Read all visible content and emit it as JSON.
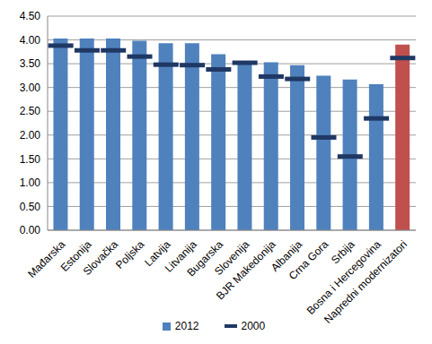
{
  "chart_data": {
    "type": "bar",
    "categories": [
      "Mađarska",
      "Estonija",
      "Slovačka",
      "Poljska",
      "Latvija",
      "Litvanija",
      "Bugarska",
      "Slovenija",
      "BJR Makedonija",
      "Albanija",
      "Crna Gora",
      "Srbija",
      "Bosna i Hercegovina",
      "Napredni modernizatori"
    ],
    "series": [
      {
        "name": "2012",
        "type": "bar",
        "colors": [
          "#4f81bd",
          "#4f81bd",
          "#4f81bd",
          "#4f81bd",
          "#4f81bd",
          "#4f81bd",
          "#4f81bd",
          "#4f81bd",
          "#4f81bd",
          "#4f81bd",
          "#4f81bd",
          "#4f81bd",
          "#4f81bd",
          "#c0504d"
        ],
        "color": "#4f81bd",
        "values": [
          4.03,
          4.03,
          4.03,
          3.98,
          3.93,
          3.93,
          3.7,
          3.52,
          3.53,
          3.47,
          3.25,
          3.17,
          3.07,
          3.9
        ]
      },
      {
        "name": "2000",
        "type": "marker",
        "marker": "dash",
        "color": "#1f3864",
        "values": [
          3.88,
          3.78,
          3.78,
          3.65,
          3.48,
          3.47,
          3.38,
          3.52,
          3.23,
          3.18,
          1.95,
          1.55,
          2.35,
          3.62
        ]
      }
    ],
    "ylim": [
      0,
      4.5
    ],
    "yticks": [
      {
        "value": 0,
        "label": "0.00"
      },
      {
        "value": 0.5,
        "label": "0.50"
      },
      {
        "value": 1,
        "label": "1.00"
      },
      {
        "value": 1.5,
        "label": "1.50"
      },
      {
        "value": 2,
        "label": "2.00"
      },
      {
        "value": 2.5,
        "label": "2.50"
      },
      {
        "value": 3,
        "label": "3.00"
      },
      {
        "value": 3.5,
        "label": "3.50"
      },
      {
        "value": 4,
        "label": "4.00"
      },
      {
        "value": 4.5,
        "label": "4.50"
      }
    ],
    "grid": true,
    "legend": "bottom"
  }
}
